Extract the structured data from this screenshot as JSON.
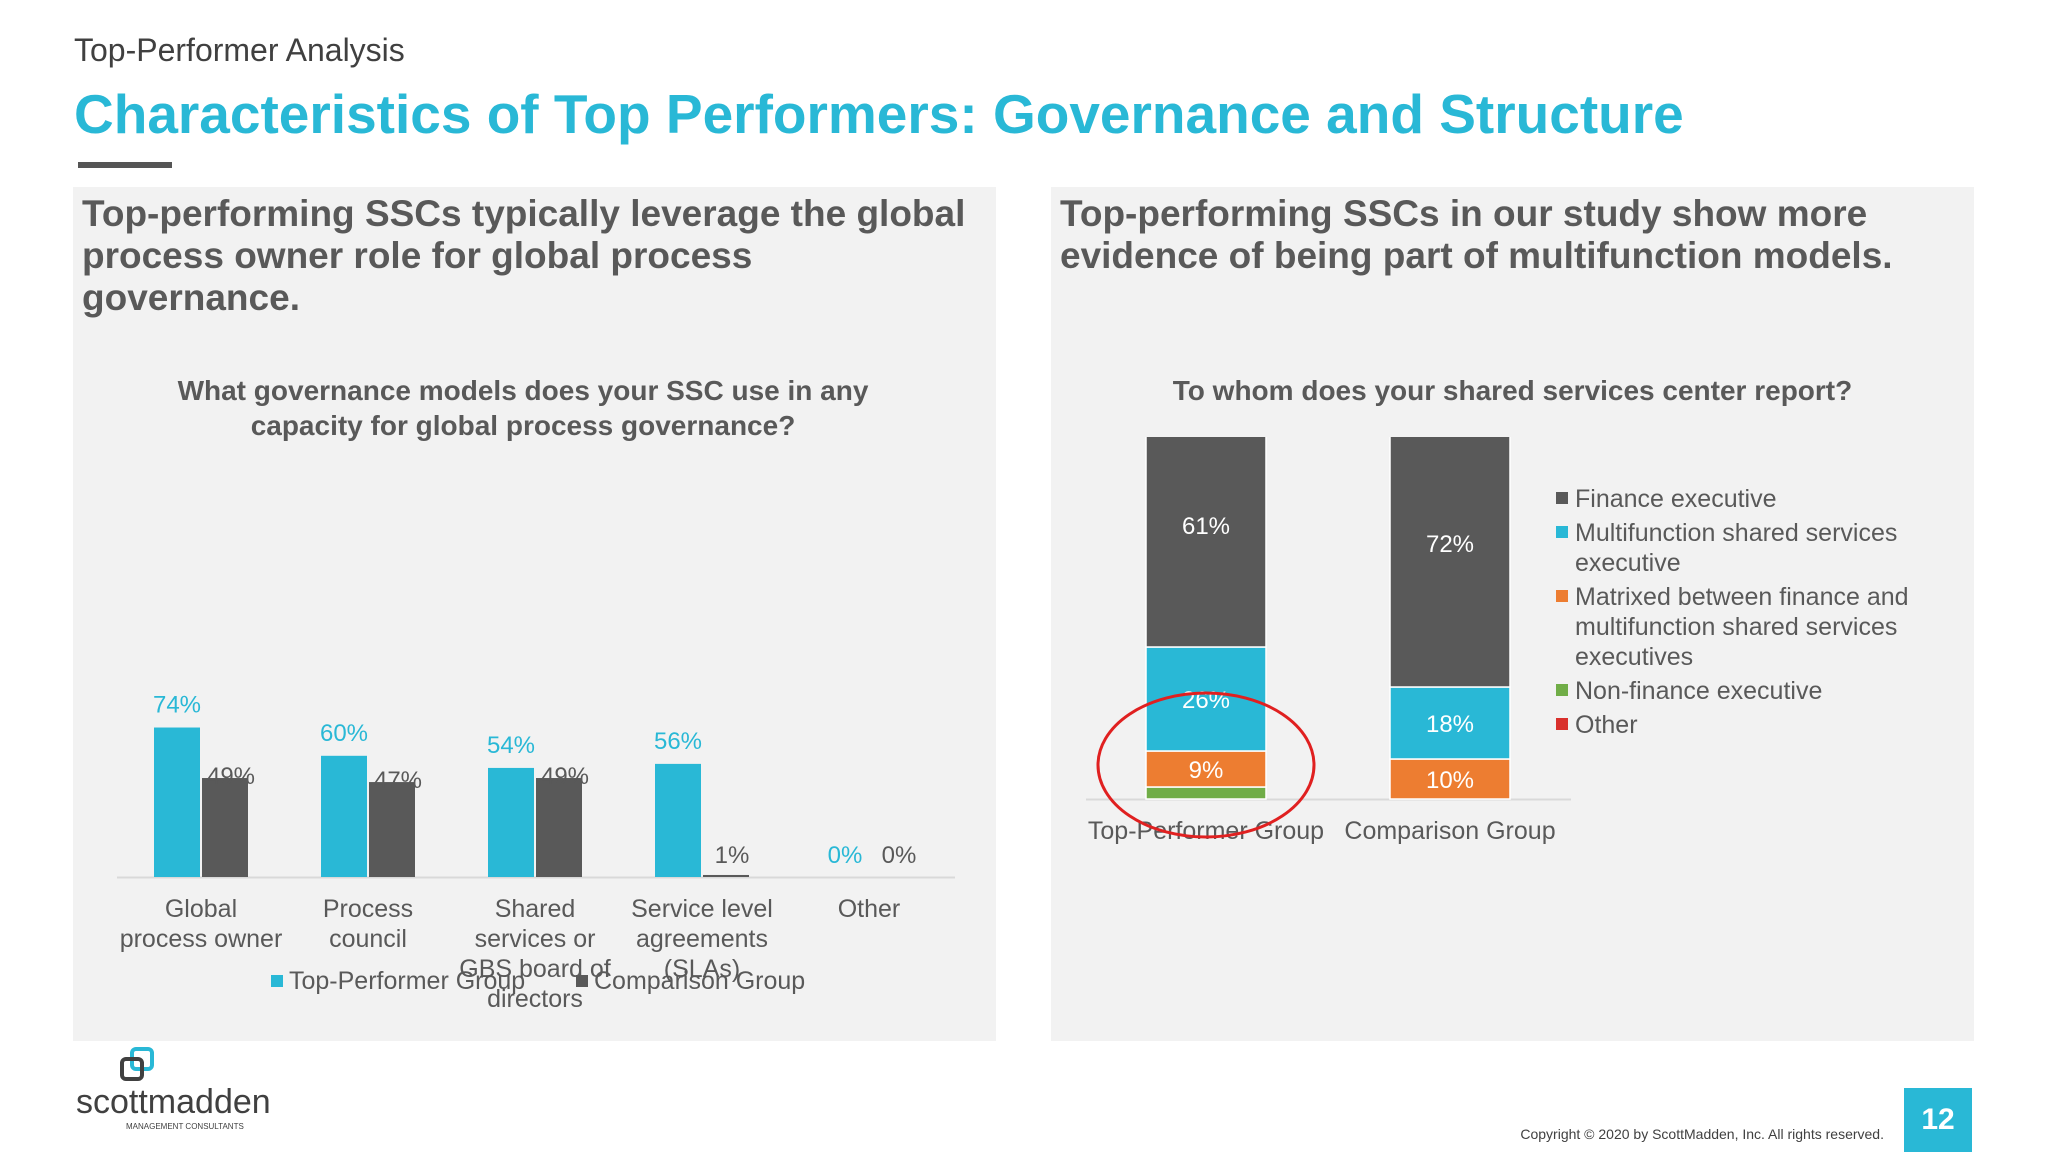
{
  "header": {
    "kicker": "Top-Performer Analysis",
    "title": "Characteristics of Top Performers: Governance and Structure"
  },
  "left_panel": {
    "heading": "Top-performing SSCs typically leverage the global process owner role for global process governance.",
    "question": "What governance models does your SSC use in any capacity for global process governance?"
  },
  "right_panel": {
    "heading": "Top-performing SSCs in our study show more evidence of being part of multifunction models.",
    "question": "To whom does your shared services center report?"
  },
  "colors": {
    "accent": "#29B8D6",
    "dark_gray": "#595959",
    "orange": "#ED7D31",
    "green": "#70AD47",
    "red": "#D9302C",
    "circle": "#E02020"
  },
  "chart_data": [
    {
      "type": "bar",
      "title": "What governance models does your SSC use in any capacity for global process governance?",
      "categories": [
        [
          "Global",
          "process owner"
        ],
        [
          "Process",
          "council"
        ],
        [
          "Shared",
          "services or",
          "GBS board of",
          "directors"
        ],
        [
          "Service level",
          "agreements",
          "(SLAs)"
        ],
        [
          "Other"
        ]
      ],
      "series": [
        {
          "name": "Top-Performer Group",
          "values": [
            74,
            60,
            54,
            56,
            0
          ],
          "labels": [
            "74%",
            "60%",
            "54%",
            "56%",
            "0%"
          ],
          "color": "#29B8D6"
        },
        {
          "name": "Comparison Group",
          "values": [
            49,
            47,
            49,
            1,
            0
          ],
          "labels": [
            "49%",
            "47%",
            "49%",
            "1%",
            "0%"
          ],
          "color": "#595959"
        }
      ],
      "ylim": [
        0,
        100
      ],
      "legend": "bottom"
    },
    {
      "type": "stacked-bar",
      "title": "To whom does your shared services center report?",
      "categories": [
        "Top-Performer Group",
        "Comparison Group"
      ],
      "series": [
        {
          "name": "Other",
          "values": [
            0,
            0
          ],
          "labels": [
            "",
            ""
          ],
          "color": "#D9302C"
        },
        {
          "name": "Non-finance executive",
          "values": [
            3,
            0
          ],
          "labels": [
            "",
            ""
          ],
          "color": "#70AD47"
        },
        {
          "name": "Matrixed between finance and multifunction shared services executives",
          "values": [
            9,
            10
          ],
          "labels": [
            "9%",
            "10%"
          ],
          "color": "#ED7D31"
        },
        {
          "name": "Multifunction shared services executive",
          "values": [
            26,
            18
          ],
          "labels": [
            "26%",
            "18%"
          ],
          "color": "#29B8D6"
        },
        {
          "name": "Finance executive",
          "values": [
            61,
            72
          ],
          "labels": [
            "61%",
            "72%"
          ],
          "color": "#595959"
        }
      ],
      "legend_entries": [
        {
          "lines": [
            "Finance executive"
          ],
          "color": "#595959"
        },
        {
          "lines": [
            "Multifunction shared services",
            "executive"
          ],
          "color": "#29B8D6"
        },
        {
          "lines": [
            "Matrixed between finance and",
            "multifunction shared services",
            "executives"
          ],
          "color": "#ED7D31"
        },
        {
          "lines": [
            "Non-finance executive"
          ],
          "color": "#70AD47"
        },
        {
          "lines": [
            "Other"
          ],
          "color": "#D9302C"
        }
      ],
      "ylim": [
        0,
        100
      ],
      "legend": "right",
      "highlight": "circle around Top-Performer Group 26% and 9% segments"
    }
  ],
  "footer": {
    "logo_text": "scottmadden",
    "logo_sub": "MANAGEMENT CONSULTANTS",
    "copyright": "Copyright © 2020 by ScottMadden, Inc. All rights reserved.",
    "page_number": "12"
  }
}
